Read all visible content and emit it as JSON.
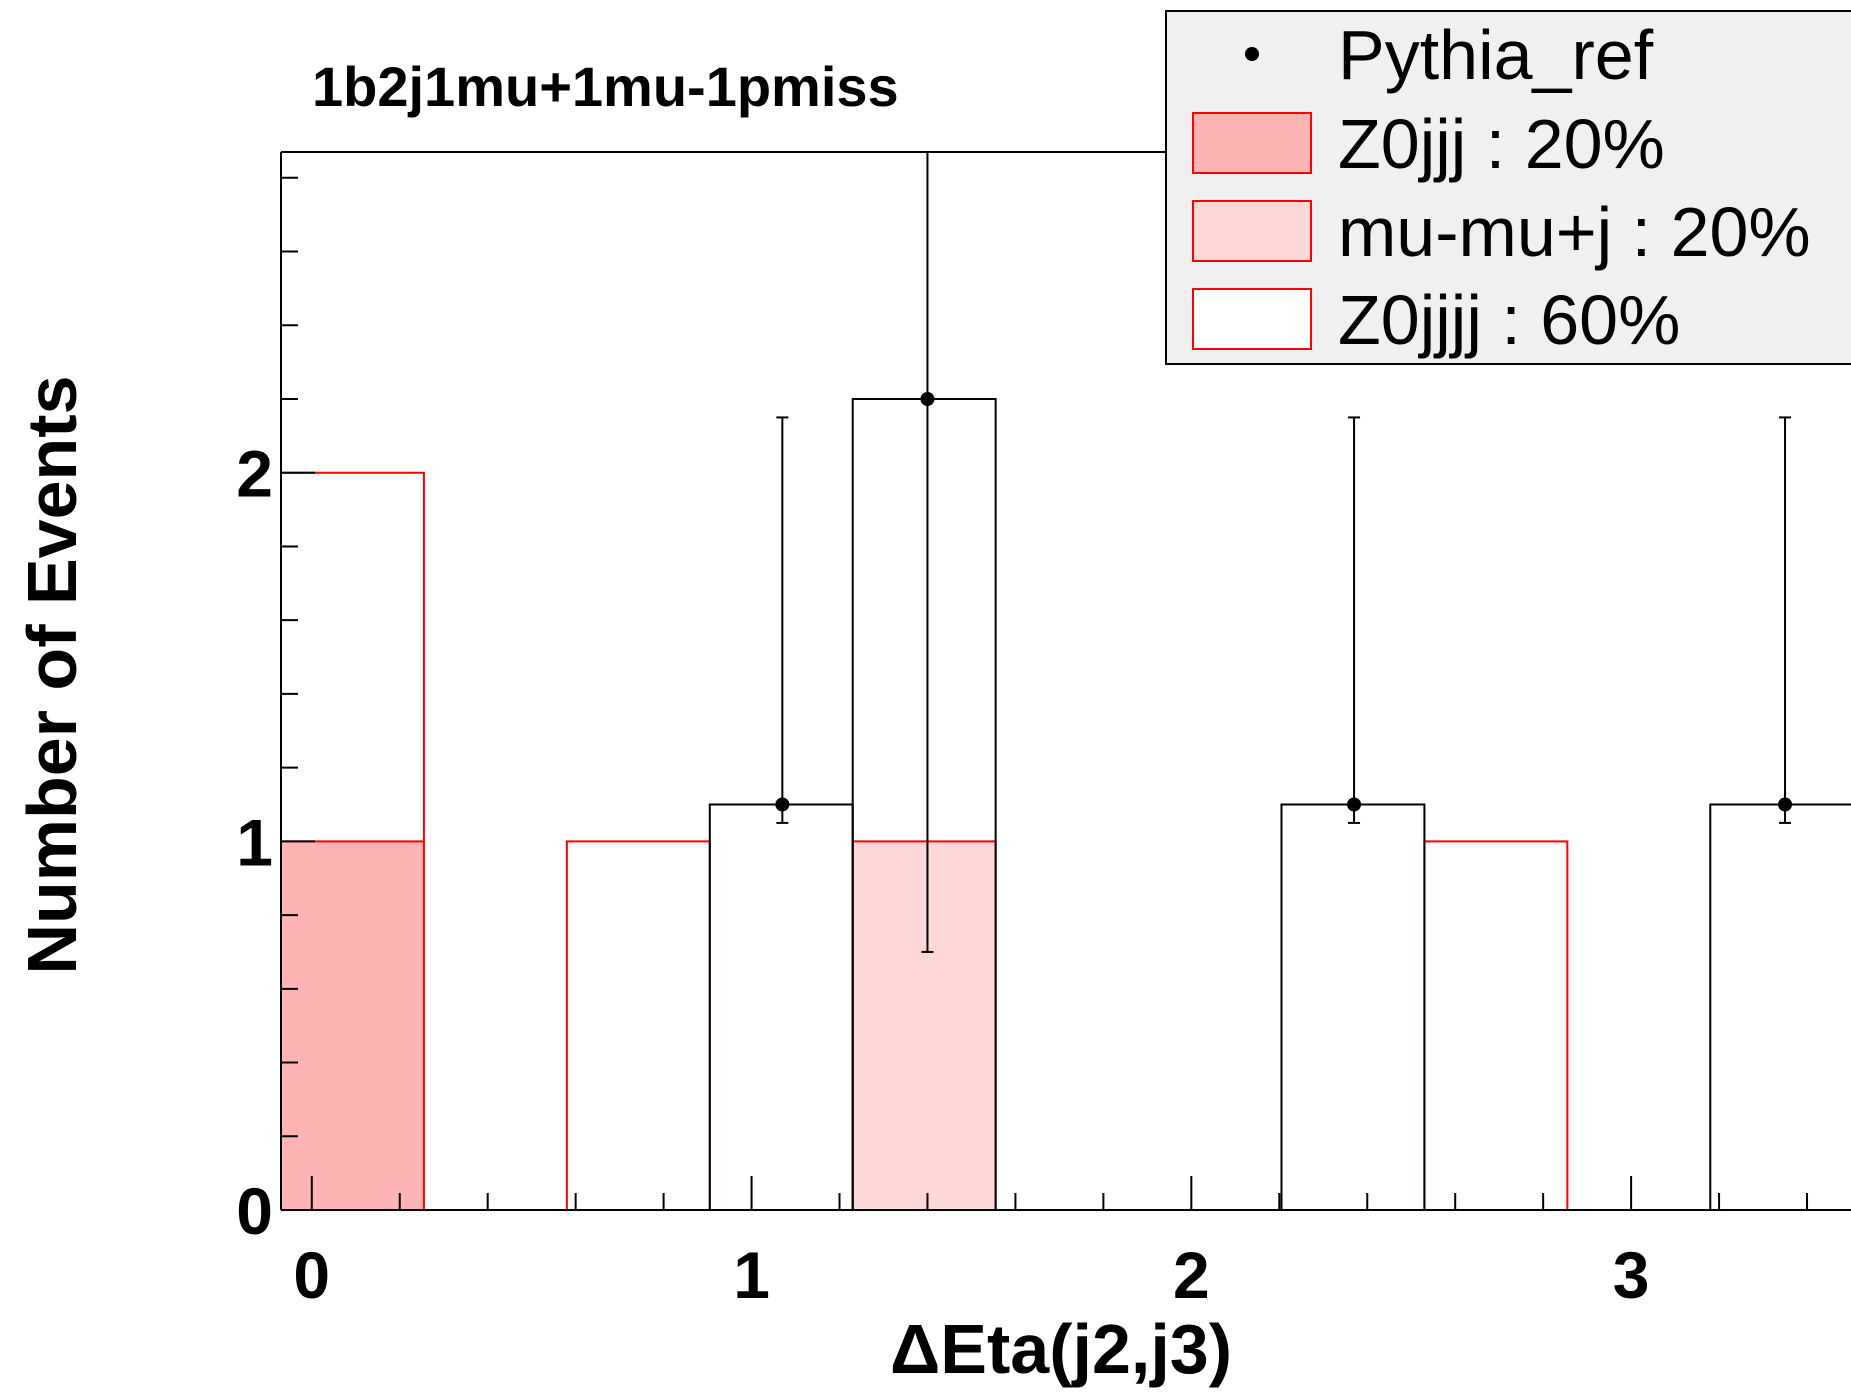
{
  "colors": {
    "z0jjj_fill": "#feb4b4",
    "mumuj_fill": "#fed8d8",
    "z0jjjj_fill": "#ffffff",
    "stack_line": "#ff0000",
    "data": "#000000",
    "legend_bg": "#f0f0f0"
  },
  "chart_data": {
    "type": "bar",
    "subtype": "stacked-histogram",
    "title": "1b2j1mu+1mu-1pmiss",
    "xlabel": "ΔEta(j2,j3)",
    "ylabel": "Number of Events",
    "xlim": [
      -0.07,
      3.5
    ],
    "ylim": [
      0,
      2.87
    ],
    "x_ticks": [
      0,
      1,
      2,
      3
    ],
    "x_tick_labels": [
      "0",
      "1",
      "2",
      "3"
    ],
    "y_ticks": [
      0,
      1,
      2
    ],
    "y_tick_labels": [
      "0",
      "1",
      "2"
    ],
    "legend_position": "top-right",
    "bin_edges": [
      -0.07,
      0.255,
      0.58,
      0.905,
      1.23,
      1.555,
      1.88,
      2.205,
      2.53,
      2.855,
      3.18,
      3.505
    ],
    "series": [
      {
        "name": "Z0jjj : 20%",
        "fill": "#feb4b4",
        "values": [
          1,
          0,
          0,
          0,
          0,
          0,
          0,
          0,
          0,
          0,
          0
        ]
      },
      {
        "name": "mu-mu+j : 20%",
        "fill": "#fed8d8",
        "values": [
          0,
          0,
          0,
          0,
          1,
          0,
          0,
          0,
          0,
          0,
          0
        ]
      },
      {
        "name": "Z0jjjj : 60%",
        "fill": "#ffffff",
        "values": [
          1,
          0,
          1,
          0,
          0,
          0,
          0,
          0,
          1,
          0,
          0
        ]
      }
    ],
    "reference": {
      "name": "Pythia_ref",
      "histogram": [
        0,
        0,
        0,
        1.1,
        2.2,
        0,
        0,
        1.1,
        0,
        0,
        1.1
      ],
      "points": [
        {
          "x": 1.07,
          "y": 1.1,
          "err_low": 1.05,
          "err_high": 2.15
        },
        {
          "x": 1.4,
          "y": 2.2,
          "err_low": 0.7,
          "err_high": 2.87
        },
        {
          "x": 2.37,
          "y": 1.1,
          "err_low": 1.05,
          "err_high": 2.15
        },
        {
          "x": 3.35,
          "y": 1.1,
          "err_low": 1.05,
          "err_high": 2.15
        }
      ]
    }
  }
}
